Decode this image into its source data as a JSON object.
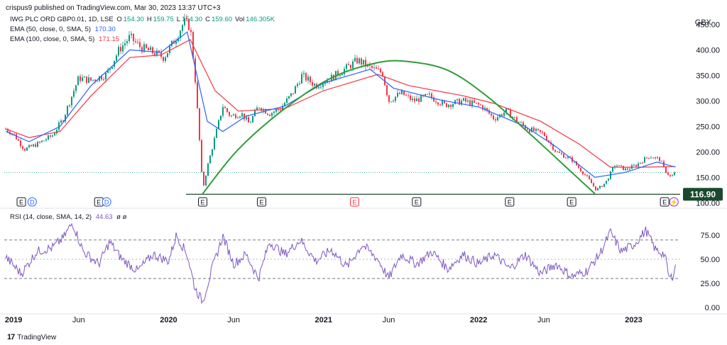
{
  "header": {
    "published": "crispus9 published on TradingView.com, Mar 30, 2023 13:37 UTC+3"
  },
  "main_legend": {
    "symbol": "IWG PLC ORD GBP0.01, 1D, LSE",
    "ohlc": [
      {
        "k": "O",
        "v": "154.30"
      },
      {
        "k": "H",
        "v": "159.75"
      },
      {
        "k": "L",
        "v": "154.30"
      },
      {
        "k": "C",
        "v": "159.60"
      },
      {
        "k": "Vol",
        "v": "146.305K"
      }
    ],
    "ema50": {
      "label": "EMA (50, close, 0, SMA, 5)",
      "value": "170.30",
      "color": "#2962ff"
    },
    "ema100": {
      "label": "EMA (100, close, 0, SMA, 5)",
      "value": "171.15",
      "color": "#f23645"
    }
  },
  "currency": "GBX",
  "rsi_legend": {
    "label": "RSI (14, close, SMA, 14, 2)",
    "value": "44.63",
    "extra": "ø ø",
    "color": "#7e57c2"
  },
  "footer": {
    "brand": "TradingView",
    "logo": "17"
  },
  "colors": {
    "up": "#089981",
    "down": "#f23645",
    "arc": "#2e9e3a",
    "ema50": "#2962ff",
    "ema100": "#f23645",
    "rsi": "#7e57c2",
    "support": "#1a4a2e"
  },
  "chart_data": [
    {
      "type": "candlestick",
      "title": "IWG PLC ORD GBP0.01, 1D, LSE",
      "x_labels": [
        "2019",
        "Jun",
        "2020",
        "Jun",
        "2021",
        "Jun",
        "2022",
        "Jun",
        "2023"
      ],
      "y_ticks": [
        100,
        150,
        200,
        250,
        300,
        350,
        400,
        450
      ],
      "y_tick_labels": [
        "100.00",
        "150.00",
        "200.00",
        "250.00",
        "300.00",
        "350.00",
        "400.00",
        "450.00"
      ],
      "ylim": [
        95,
        470
      ],
      "current_price": 159.6,
      "support_level": {
        "value": 116.9,
        "label": "116.90"
      },
      "price_path": [
        {
          "t": 2018.95,
          "p": 245
        },
        {
          "t": 2019.0,
          "p": 235
        },
        {
          "t": 2019.07,
          "p": 205
        },
        {
          "t": 2019.15,
          "p": 215
        },
        {
          "t": 2019.25,
          "p": 232
        },
        {
          "t": 2019.32,
          "p": 265
        },
        {
          "t": 2019.42,
          "p": 345
        },
        {
          "t": 2019.5,
          "p": 340
        },
        {
          "t": 2019.6,
          "p": 352
        },
        {
          "t": 2019.68,
          "p": 400
        },
        {
          "t": 2019.75,
          "p": 425
        },
        {
          "t": 2019.82,
          "p": 405
        },
        {
          "t": 2019.9,
          "p": 395
        },
        {
          "t": 2019.97,
          "p": 385
        },
        {
          "t": 2020.05,
          "p": 425
        },
        {
          "t": 2020.1,
          "p": 455
        },
        {
          "t": 2020.14,
          "p": 445
        },
        {
          "t": 2020.17,
          "p": 350
        },
        {
          "t": 2020.2,
          "p": 220
        },
        {
          "t": 2020.22,
          "p": 125
        },
        {
          "t": 2020.25,
          "p": 170
        },
        {
          "t": 2020.3,
          "p": 230
        },
        {
          "t": 2020.35,
          "p": 290
        },
        {
          "t": 2020.4,
          "p": 270
        },
        {
          "t": 2020.47,
          "p": 275
        },
        {
          "t": 2020.52,
          "p": 255
        },
        {
          "t": 2020.58,
          "p": 290
        },
        {
          "t": 2020.65,
          "p": 275
        },
        {
          "t": 2020.72,
          "p": 285
        },
        {
          "t": 2020.8,
          "p": 315
        },
        {
          "t": 2020.86,
          "p": 350
        },
        {
          "t": 2020.95,
          "p": 330
        },
        {
          "t": 2021.05,
          "p": 345
        },
        {
          "t": 2021.15,
          "p": 365
        },
        {
          "t": 2021.22,
          "p": 380
        },
        {
          "t": 2021.3,
          "p": 365
        },
        {
          "t": 2021.38,
          "p": 355
        },
        {
          "t": 2021.42,
          "p": 300
        },
        {
          "t": 2021.5,
          "p": 315
        },
        {
          "t": 2021.58,
          "p": 300
        },
        {
          "t": 2021.68,
          "p": 310
        },
        {
          "t": 2021.78,
          "p": 292
        },
        {
          "t": 2021.9,
          "p": 300
        },
        {
          "t": 2022.02,
          "p": 290
        },
        {
          "t": 2022.1,
          "p": 265
        },
        {
          "t": 2022.18,
          "p": 280
        },
        {
          "t": 2022.25,
          "p": 260
        },
        {
          "t": 2022.32,
          "p": 245
        },
        {
          "t": 2022.42,
          "p": 235
        },
        {
          "t": 2022.5,
          "p": 200
        },
        {
          "t": 2022.6,
          "p": 185
        },
        {
          "t": 2022.7,
          "p": 150
        },
        {
          "t": 2022.76,
          "p": 125
        },
        {
          "t": 2022.82,
          "p": 140
        },
        {
          "t": 2022.88,
          "p": 175
        },
        {
          "t": 2022.95,
          "p": 165
        },
        {
          "t": 2023.02,
          "p": 175
        },
        {
          "t": 2023.1,
          "p": 192
        },
        {
          "t": 2023.17,
          "p": 185
        },
        {
          "t": 2023.2,
          "p": 165
        },
        {
          "t": 2023.24,
          "p": 150
        },
        {
          "t": 2023.27,
          "p": 159.6
        }
      ],
      "ema50_path": [
        {
          "t": 2018.95,
          "p": 240
        },
        {
          "t": 2019.1,
          "p": 220
        },
        {
          "t": 2019.3,
          "p": 250
        },
        {
          "t": 2019.5,
          "p": 330
        },
        {
          "t": 2019.75,
          "p": 400
        },
        {
          "t": 2019.95,
          "p": 395
        },
        {
          "t": 2020.12,
          "p": 435
        },
        {
          "t": 2020.25,
          "p": 260
        },
        {
          "t": 2020.35,
          "p": 240
        },
        {
          "t": 2020.5,
          "p": 270
        },
        {
          "t": 2020.75,
          "p": 290
        },
        {
          "t": 2021.0,
          "p": 335
        },
        {
          "t": 2021.3,
          "p": 362
        },
        {
          "t": 2021.45,
          "p": 325
        },
        {
          "t": 2021.75,
          "p": 302
        },
        {
          "t": 2022.0,
          "p": 288
        },
        {
          "t": 2022.3,
          "p": 250
        },
        {
          "t": 2022.5,
          "p": 210
        },
        {
          "t": 2022.75,
          "p": 150
        },
        {
          "t": 2022.95,
          "p": 160
        },
        {
          "t": 2023.15,
          "p": 180
        },
        {
          "t": 2023.27,
          "p": 170.3
        }
      ],
      "ema100_path": [
        {
          "t": 2018.95,
          "p": 245
        },
        {
          "t": 2019.1,
          "p": 228
        },
        {
          "t": 2019.3,
          "p": 240
        },
        {
          "t": 2019.5,
          "p": 310
        },
        {
          "t": 2019.75,
          "p": 385
        },
        {
          "t": 2019.95,
          "p": 390
        },
        {
          "t": 2020.14,
          "p": 420
        },
        {
          "t": 2020.3,
          "p": 320
        },
        {
          "t": 2020.45,
          "p": 280
        },
        {
          "t": 2020.75,
          "p": 285
        },
        {
          "t": 2021.0,
          "p": 320
        },
        {
          "t": 2021.35,
          "p": 352
        },
        {
          "t": 2021.55,
          "p": 330
        },
        {
          "t": 2021.9,
          "p": 310
        },
        {
          "t": 2022.1,
          "p": 295
        },
        {
          "t": 2022.4,
          "p": 260
        },
        {
          "t": 2022.65,
          "p": 215
        },
        {
          "t": 2022.85,
          "p": 170
        },
        {
          "t": 2023.05,
          "p": 170
        },
        {
          "t": 2023.27,
          "p": 171.15
        }
      ],
      "arc": [
        {
          "t": 2020.22,
          "p": 118
        },
        {
          "t": 2020.45,
          "p": 205
        },
        {
          "t": 2020.75,
          "p": 285
        },
        {
          "t": 2021.05,
          "p": 345
        },
        {
          "t": 2021.35,
          "p": 375
        },
        {
          "t": 2021.55,
          "p": 377
        },
        {
          "t": 2021.8,
          "p": 360
        },
        {
          "t": 2022.05,
          "p": 310
        },
        {
          "t": 2022.35,
          "p": 230
        },
        {
          "t": 2022.6,
          "p": 160
        },
        {
          "t": 2022.75,
          "p": 118
        }
      ],
      "events": [
        {
          "t": 2019.05,
          "label": "E",
          "color": "#131722"
        },
        {
          "t": 2019.12,
          "label": "D",
          "color": "#2962ff"
        },
        {
          "t": 2019.55,
          "label": "E",
          "color": "#131722"
        },
        {
          "t": 2019.6,
          "label": "D",
          "color": "#2962ff"
        },
        {
          "t": 2020.22,
          "label": "E",
          "color": "#131722"
        },
        {
          "t": 2020.6,
          "label": "E",
          "color": "#131722"
        },
        {
          "t": 2021.2,
          "label": "E",
          "color": "#f23645"
        },
        {
          "t": 2021.6,
          "label": "E",
          "color": "#131722"
        },
        {
          "t": 2022.2,
          "label": "E",
          "color": "#131722"
        },
        {
          "t": 2022.6,
          "label": "E",
          "color": "#131722"
        },
        {
          "t": 2023.2,
          "label": "E",
          "color": "#131722"
        },
        {
          "t": 2023.26,
          "label": "⚡",
          "color": "#9c27b0"
        }
      ]
    },
    {
      "type": "line",
      "title": "RSI (14, close, SMA, 14, 2)",
      "y_ticks": [
        0,
        25,
        50,
        75
      ],
      "y_tick_labels": [
        "0.00",
        "25.00",
        "50.00",
        "75.00"
      ],
      "ylim": [
        -3,
        100
      ],
      "bands": [
        30,
        50,
        70
      ],
      "latest": 44.63,
      "rsi_path": [
        {
          "t": 2018.95,
          "p": 52
        },
        {
          "t": 2019.05,
          "p": 35
        },
        {
          "t": 2019.15,
          "p": 58
        },
        {
          "t": 2019.25,
          "p": 62
        },
        {
          "t": 2019.32,
          "p": 72
        },
        {
          "t": 2019.38,
          "p": 88
        },
        {
          "t": 2019.45,
          "p": 58
        },
        {
          "t": 2019.55,
          "p": 45
        },
        {
          "t": 2019.62,
          "p": 68
        },
        {
          "t": 2019.7,
          "p": 50
        },
        {
          "t": 2019.8,
          "p": 38
        },
        {
          "t": 2019.9,
          "p": 55
        },
        {
          "t": 2020.0,
          "p": 48
        },
        {
          "t": 2020.05,
          "p": 75
        },
        {
          "t": 2020.12,
          "p": 55
        },
        {
          "t": 2020.17,
          "p": 20
        },
        {
          "t": 2020.22,
          "p": 6
        },
        {
          "t": 2020.28,
          "p": 40
        },
        {
          "t": 2020.35,
          "p": 74
        },
        {
          "t": 2020.42,
          "p": 45
        },
        {
          "t": 2020.5,
          "p": 55
        },
        {
          "t": 2020.58,
          "p": 30
        },
        {
          "t": 2020.65,
          "p": 68
        },
        {
          "t": 2020.75,
          "p": 55
        },
        {
          "t": 2020.85,
          "p": 70
        },
        {
          "t": 2020.95,
          "p": 48
        },
        {
          "t": 2021.05,
          "p": 60
        },
        {
          "t": 2021.15,
          "p": 42
        },
        {
          "t": 2021.25,
          "p": 65
        },
        {
          "t": 2021.35,
          "p": 50
        },
        {
          "t": 2021.42,
          "p": 30
        },
        {
          "t": 2021.5,
          "p": 55
        },
        {
          "t": 2021.6,
          "p": 45
        },
        {
          "t": 2021.7,
          "p": 58
        },
        {
          "t": 2021.8,
          "p": 40
        },
        {
          "t": 2021.9,
          "p": 55
        },
        {
          "t": 2022.0,
          "p": 45
        },
        {
          "t": 2022.1,
          "p": 55
        },
        {
          "t": 2022.2,
          "p": 40
        },
        {
          "t": 2022.3,
          "p": 55
        },
        {
          "t": 2022.4,
          "p": 35
        },
        {
          "t": 2022.5,
          "p": 45
        },
        {
          "t": 2022.6,
          "p": 32
        },
        {
          "t": 2022.7,
          "p": 38
        },
        {
          "t": 2022.78,
          "p": 55
        },
        {
          "t": 2022.85,
          "p": 78
        },
        {
          "t": 2022.92,
          "p": 58
        },
        {
          "t": 2023.0,
          "p": 65
        },
        {
          "t": 2023.08,
          "p": 80
        },
        {
          "t": 2023.14,
          "p": 60
        },
        {
          "t": 2023.2,
          "p": 55
        },
        {
          "t": 2023.23,
          "p": 30
        },
        {
          "t": 2023.25,
          "p": 32
        },
        {
          "t": 2023.27,
          "p": 44.63
        }
      ]
    }
  ]
}
